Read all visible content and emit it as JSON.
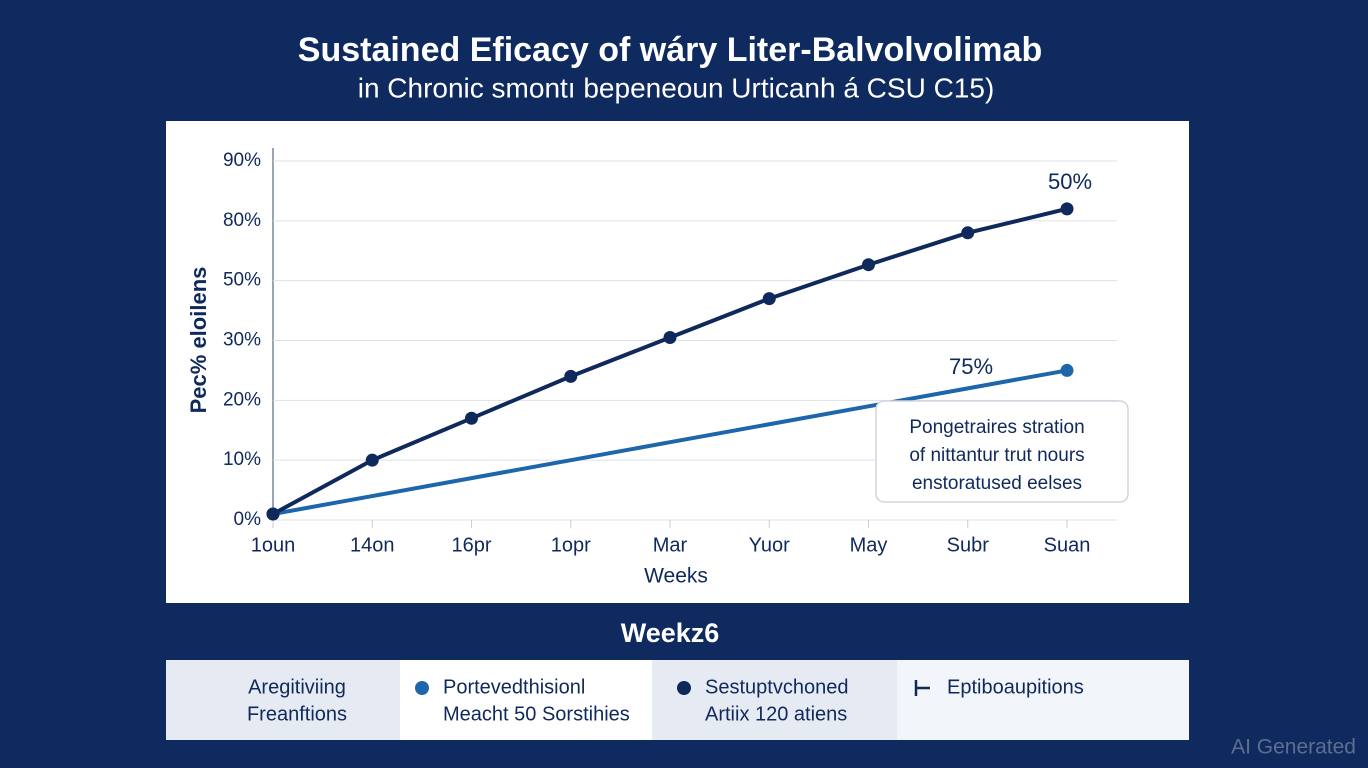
{
  "chart_data": {
    "type": "line",
    "title": "Sustained Eficacy of wáry Liter-Balvolvolimab",
    "subtitle": "in Chronic smontı bepeneoun Urticanh á CSU C15)",
    "y_label": "Pec% eloilens",
    "x_label": "Weeks",
    "categories": [
      "1oun",
      "14on",
      "16pr",
      "1opr",
      "Mar",
      "Yuor",
      "May",
      "Subr",
      "Suan"
    ],
    "series": [
      {
        "name": "Portevedthisionl",
        "color": "#1d66ab",
        "markers": "ends",
        "values": [
          1,
          4,
          7,
          10,
          13,
          16,
          19,
          22,
          25
        ]
      },
      {
        "name": "Sestuptvchoned",
        "color": "#10295c",
        "markers": "all",
        "values": [
          1,
          10,
          17,
          24,
          31,
          44,
          58,
          74,
          82
        ]
      }
    ],
    "ylim": [
      0,
      90
    ],
    "yticks": [
      {
        "value": 0,
        "label": "0%"
      },
      {
        "value": 10,
        "label": "10%"
      },
      {
        "value": 20,
        "label": "20%"
      },
      {
        "value": 30,
        "label": "30%"
      },
      {
        "value": 50,
        "label": "50%"
      },
      {
        "value": 80,
        "label": "80%"
      },
      {
        "value": 90,
        "label": "90%"
      }
    ],
    "grid": true,
    "annotations": [
      {
        "text": "50%"
      },
      {
        "text": "75%"
      }
    ],
    "callout": [
      "Pongetraires stration",
      "of nittantur trut nours",
      "enstoratused eelses"
    ],
    "section_heading": "Weekz6",
    "legend_panel": {
      "first": [
        "Aregitiviing",
        "Freanftions"
      ],
      "series_notes": [
        "Meacht 50 Sorstihies",
        "Artiix 120 atiens"
      ],
      "last": "Eptiboaupitions"
    },
    "watermark": "AI Generated"
  }
}
